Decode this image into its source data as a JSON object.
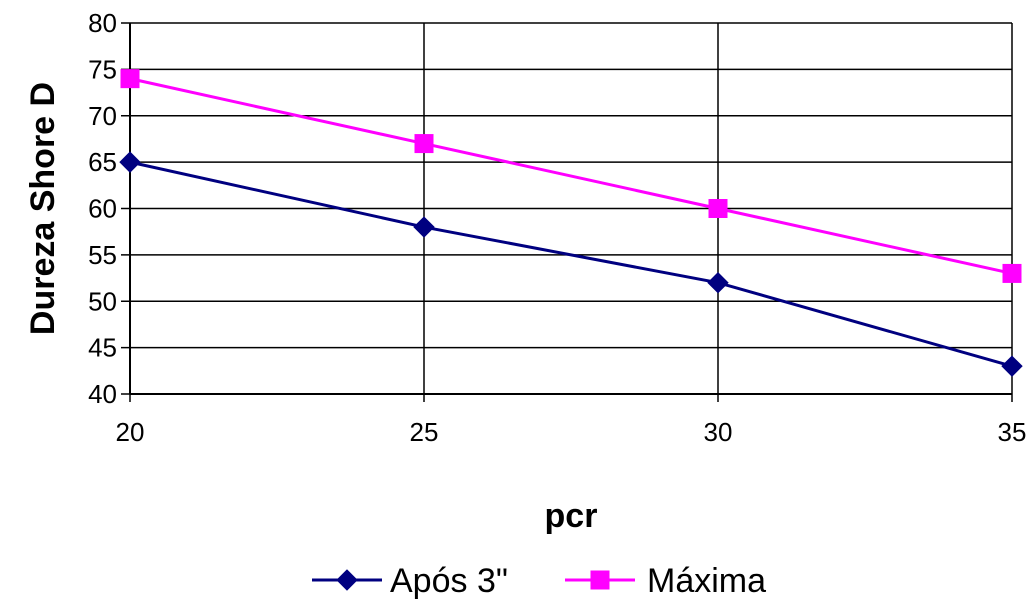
{
  "chart_data": {
    "type": "line",
    "title": "",
    "xlabel": "pcr",
    "ylabel": "Dureza Shore D",
    "x": [
      20,
      25,
      30,
      35
    ],
    "xlim": [
      20,
      35
    ],
    "ylim": [
      40,
      80
    ],
    "yticks": [
      40,
      45,
      50,
      55,
      60,
      65,
      70,
      75,
      80
    ],
    "xticks": [
      20,
      25,
      30,
      35
    ],
    "grid": true,
    "legend_position": "bottom",
    "series": [
      {
        "name": "Após 3\"",
        "values": [
          65,
          58,
          52,
          43
        ],
        "color": "#000080",
        "marker": "diamond"
      },
      {
        "name": "Máxima",
        "values": [
          74,
          67,
          60,
          53
        ],
        "color": "#ff00ff",
        "marker": "square"
      }
    ]
  }
}
